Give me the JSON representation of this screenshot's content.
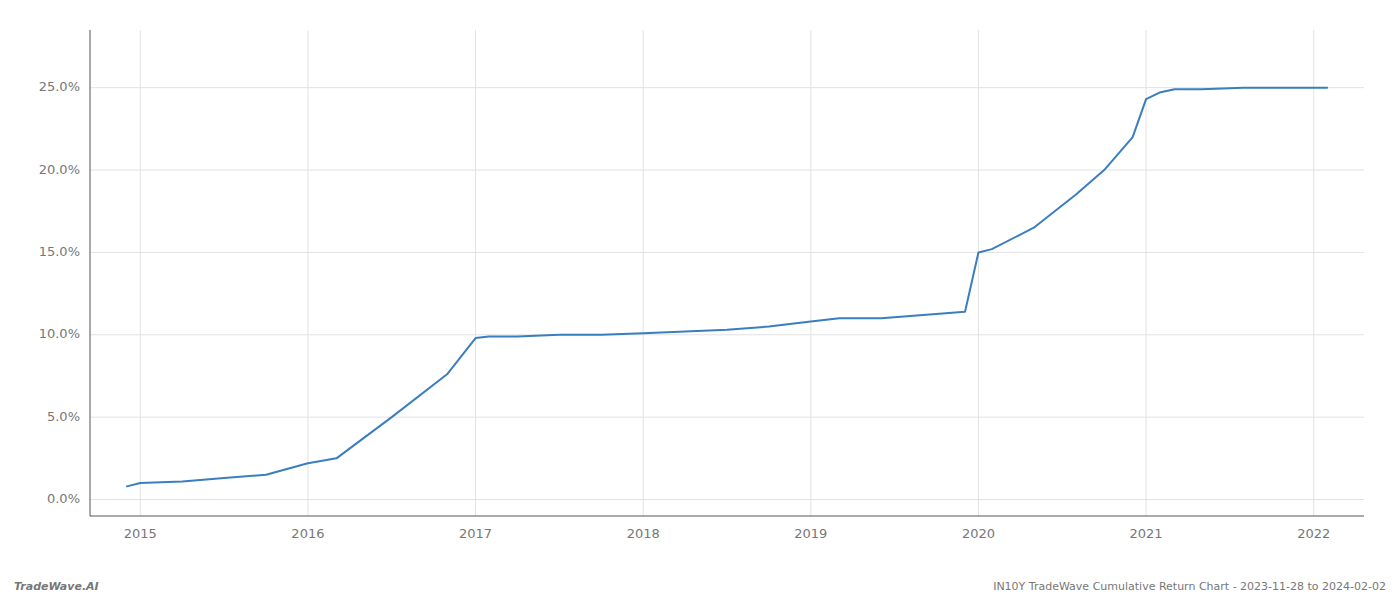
{
  "chart_data": {
    "type": "line",
    "x": [
      2014.92,
      2015.0,
      2015.25,
      2015.5,
      2015.75,
      2016.0,
      2016.17,
      2016.5,
      2016.83,
      2017.0,
      2017.08,
      2017.25,
      2017.5,
      2017.75,
      2018.0,
      2018.25,
      2018.5,
      2018.75,
      2019.0,
      2019.17,
      2019.42,
      2019.67,
      2019.92,
      2020.0,
      2020.08,
      2020.33,
      2020.58,
      2020.75,
      2020.92,
      2021.0,
      2021.08,
      2021.17,
      2021.33,
      2021.58,
      2021.83,
      2022.0,
      2022.08
    ],
    "values": [
      0.008,
      0.01,
      0.011,
      0.013,
      0.015,
      0.022,
      0.025,
      0.05,
      0.076,
      0.098,
      0.099,
      0.099,
      0.1,
      0.1,
      0.101,
      0.102,
      0.103,
      0.105,
      0.108,
      0.11,
      0.11,
      0.112,
      0.114,
      0.15,
      0.152,
      0.165,
      0.185,
      0.2,
      0.22,
      0.243,
      0.247,
      0.249,
      0.249,
      0.25,
      0.25,
      0.25,
      0.25
    ],
    "color": "#3a7ebf",
    "xlim": [
      2014.7,
      2022.3
    ],
    "ylim": [
      -0.01,
      0.285
    ],
    "xticks": [
      2015,
      2016,
      2017,
      2018,
      2019,
      2020,
      2021,
      2022
    ],
    "yticks": [
      {
        "value": 0.0,
        "label": "0.0%"
      },
      {
        "value": 0.05,
        "label": "5.0%"
      },
      {
        "value": 0.1,
        "label": "10.0%"
      },
      {
        "value": 0.15,
        "label": "15.0%"
      },
      {
        "value": 0.2,
        "label": "20.0%"
      },
      {
        "value": 0.25,
        "label": "25.0%"
      }
    ],
    "grid": true,
    "annotations": [
      "TradeWave.AI",
      "IN10Y TradeWave Cumulative Return Chart - 2023-11-28 to 2024-02-02"
    ]
  }
}
